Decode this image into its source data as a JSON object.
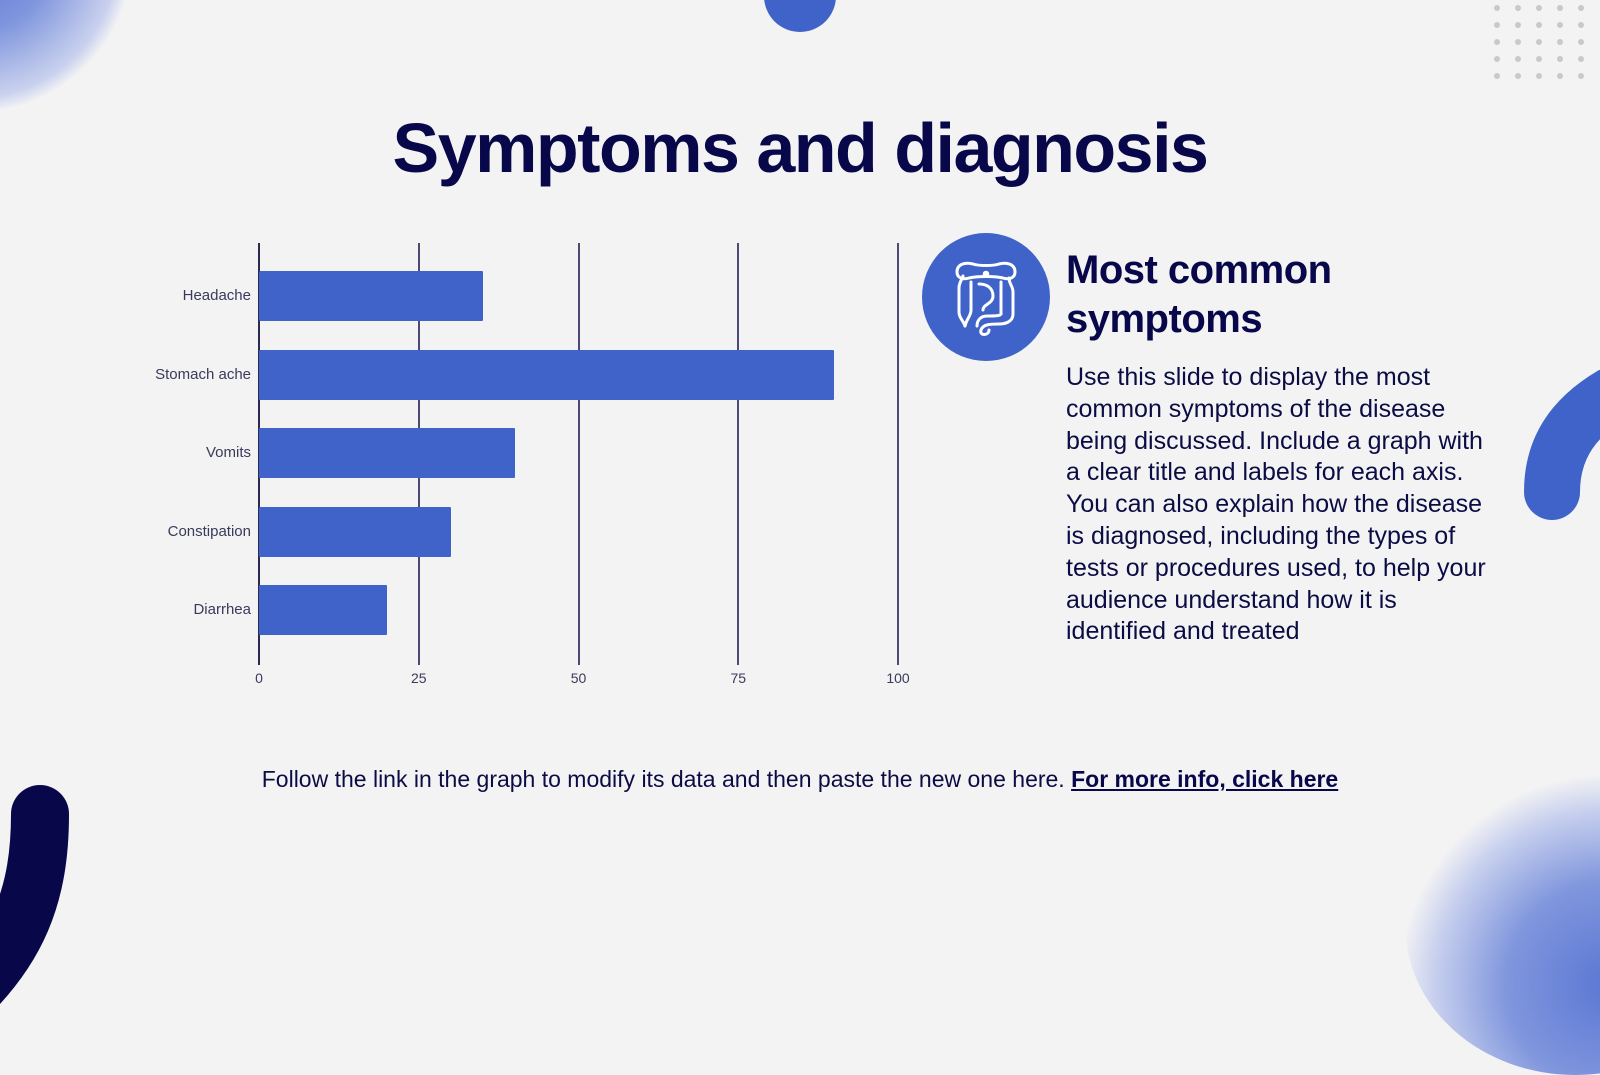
{
  "slide": {
    "title": "Symptoms and diagnosis",
    "side": {
      "icon": "intestine-icon",
      "heading_line1": "Most common",
      "heading_line2": "symptoms",
      "body": "Use this slide to display the most common symptoms of the disease being discussed. Include a graph with a clear title and labels for each axis. You can also explain how the disease is diagnosed, including the types of tests or procedures used, to help your audience understand how it is identified and treated"
    },
    "footer": {
      "text": "Follow the link in the graph to modify its data and then paste the new one here.",
      "link_label": "For more info, click here"
    }
  },
  "colors": {
    "background": "#f3f3f4",
    "primary_blue": "#3f63c9",
    "navy": "#07074a",
    "gridline": "#4a4a72"
  },
  "chart_data": {
    "type": "bar",
    "orientation": "horizontal",
    "title": "",
    "xlabel": "",
    "ylabel": "",
    "categories": [
      "Headache",
      "Stomach ache",
      "Vomits",
      "Constipation",
      "Diarrhea"
    ],
    "values": [
      35,
      90,
      40,
      30,
      20
    ],
    "xlim": [
      0,
      100
    ],
    "x_ticks": [
      "0",
      "25",
      "50",
      "75",
      "100"
    ],
    "grid": true,
    "legend": null,
    "bar_color": "#3f63c9"
  }
}
